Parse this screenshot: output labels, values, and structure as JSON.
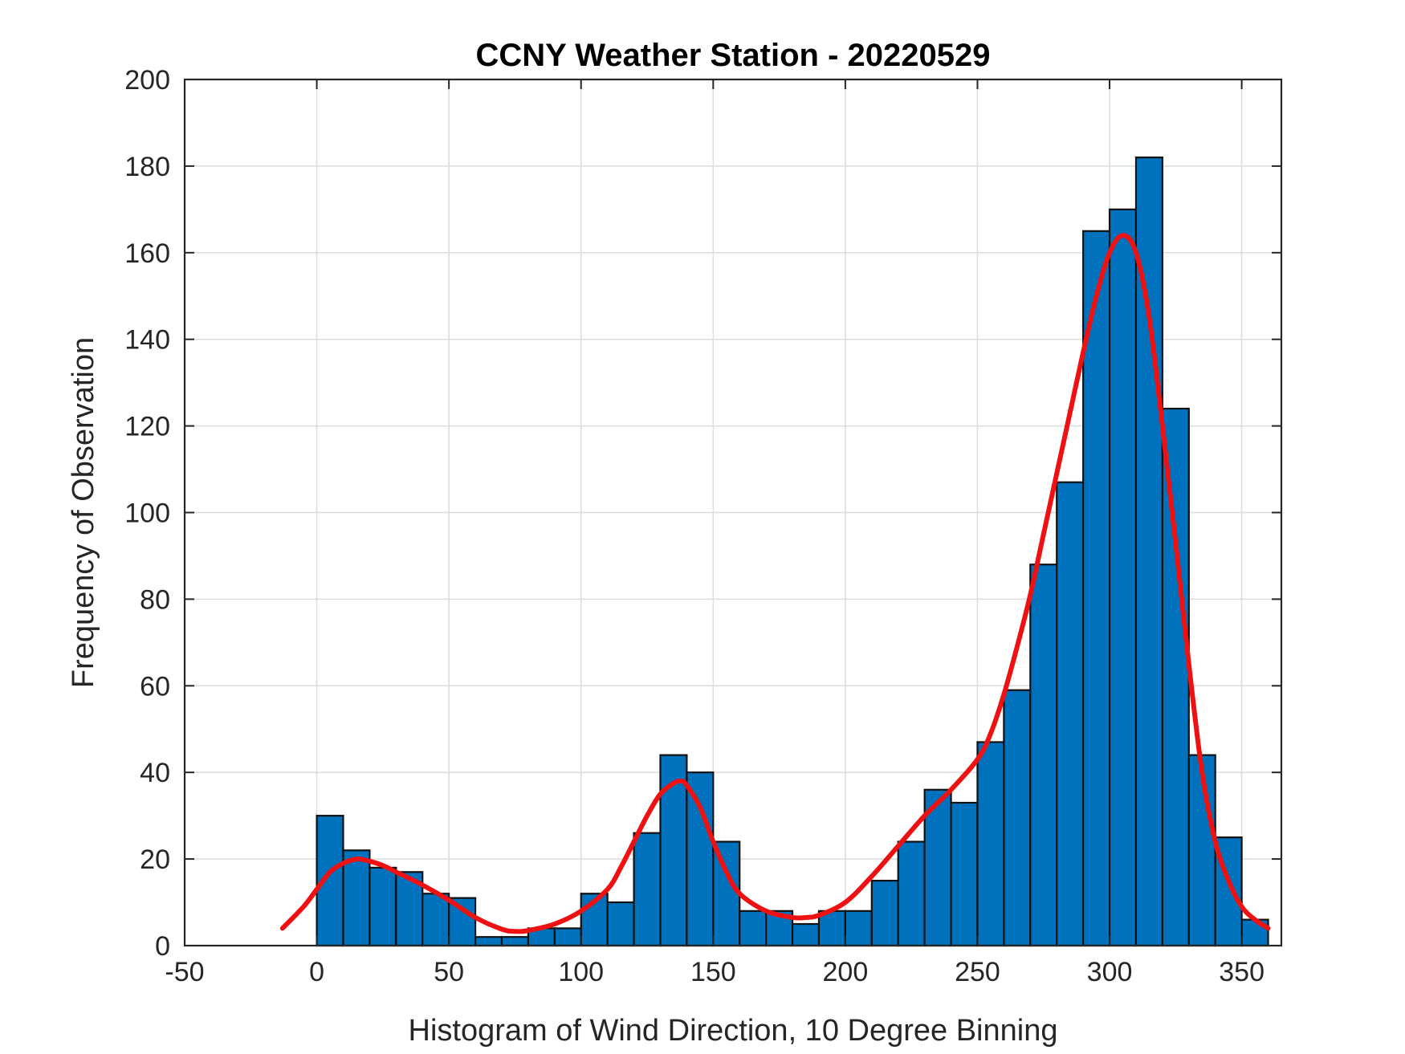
{
  "chart_data": {
    "type": "bar",
    "title": "CCNY Weather Station - 20220529",
    "xlabel": "Histogram of Wind Direction, 10 Degree Binning",
    "ylabel": "Frequency of Observation",
    "xlim": [
      -50,
      365
    ],
    "ylim": [
      0,
      200
    ],
    "xticks": [
      -50,
      0,
      50,
      100,
      150,
      200,
      250,
      300,
      350
    ],
    "yticks": [
      0,
      20,
      40,
      60,
      80,
      100,
      120,
      140,
      160,
      180,
      200
    ],
    "grid": true,
    "bin_width": 10,
    "bins": [
      {
        "x0": 0,
        "x1": 10,
        "value": 30
      },
      {
        "x0": 10,
        "x1": 20,
        "value": 22
      },
      {
        "x0": 20,
        "x1": 30,
        "value": 18
      },
      {
        "x0": 30,
        "x1": 40,
        "value": 17
      },
      {
        "x0": 40,
        "x1": 50,
        "value": 12
      },
      {
        "x0": 50,
        "x1": 60,
        "value": 11
      },
      {
        "x0": 60,
        "x1": 70,
        "value": 2
      },
      {
        "x0": 70,
        "x1": 80,
        "value": 2
      },
      {
        "x0": 80,
        "x1": 90,
        "value": 4
      },
      {
        "x0": 90,
        "x1": 100,
        "value": 4
      },
      {
        "x0": 100,
        "x1": 110,
        "value": 12
      },
      {
        "x0": 110,
        "x1": 120,
        "value": 10
      },
      {
        "x0": 120,
        "x1": 130,
        "value": 26
      },
      {
        "x0": 130,
        "x1": 140,
        "value": 44
      },
      {
        "x0": 140,
        "x1": 150,
        "value": 40
      },
      {
        "x0": 150,
        "x1": 160,
        "value": 24
      },
      {
        "x0": 160,
        "x1": 170,
        "value": 8
      },
      {
        "x0": 170,
        "x1": 180,
        "value": 8
      },
      {
        "x0": 180,
        "x1": 190,
        "value": 5
      },
      {
        "x0": 190,
        "x1": 200,
        "value": 8
      },
      {
        "x0": 200,
        "x1": 210,
        "value": 8
      },
      {
        "x0": 210,
        "x1": 220,
        "value": 15
      },
      {
        "x0": 220,
        "x1": 230,
        "value": 24
      },
      {
        "x0": 230,
        "x1": 240,
        "value": 36
      },
      {
        "x0": 240,
        "x1": 250,
        "value": 33
      },
      {
        "x0": 250,
        "x1": 260,
        "value": 47
      },
      {
        "x0": 260,
        "x1": 270,
        "value": 59
      },
      {
        "x0": 270,
        "x1": 280,
        "value": 88
      },
      {
        "x0": 280,
        "x1": 290,
        "value": 107
      },
      {
        "x0": 290,
        "x1": 300,
        "value": 165
      },
      {
        "x0": 300,
        "x1": 310,
        "value": 170
      },
      {
        "x0": 310,
        "x1": 320,
        "value": 182
      },
      {
        "x0": 320,
        "x1": 330,
        "value": 124
      },
      {
        "x0": 330,
        "x1": 340,
        "value": 44
      },
      {
        "x0": 340,
        "x1": 350,
        "value": 25
      },
      {
        "x0": 350,
        "x1": 360,
        "value": 6
      }
    ],
    "fit_curve": {
      "x": [
        -13,
        -5,
        0,
        5,
        10,
        15,
        20,
        25,
        30,
        40,
        50,
        60,
        70,
        75,
        80,
        90,
        100,
        110,
        115,
        120,
        125,
        130,
        135,
        138,
        140,
        145,
        150,
        155,
        160,
        170,
        180,
        185,
        190,
        200,
        210,
        220,
        230,
        240,
        250,
        255,
        260,
        265,
        270,
        275,
        280,
        285,
        290,
        295,
        300,
        305,
        310,
        315,
        320,
        325,
        330,
        335,
        340,
        345,
        350,
        355,
        360
      ],
      "y": [
        4,
        9,
        13,
        17,
        19,
        20,
        19.5,
        18.5,
        17,
        14,
        10.5,
        6.5,
        3.8,
        3.3,
        3.5,
        5,
        8,
        13,
        18,
        24,
        30,
        35,
        37.5,
        38,
        37,
        32,
        24,
        17,
        12,
        8,
        6.5,
        6.5,
        7,
        10,
        16,
        23,
        30,
        36,
        43,
        49,
        58,
        69,
        81,
        95,
        109,
        123,
        137,
        150,
        160,
        164,
        160,
        145,
        120,
        93,
        65,
        40,
        24,
        15,
        9,
        6,
        4
      ]
    },
    "colors": {
      "bar": "#0072BD",
      "curve": "#EE1111",
      "edge": "#111111"
    }
  }
}
